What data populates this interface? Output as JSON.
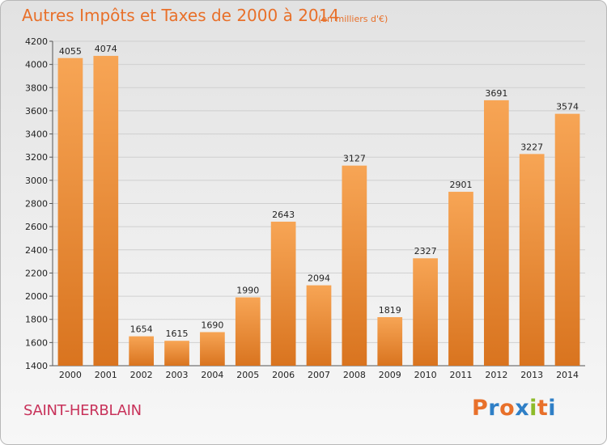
{
  "title": "Autres Impôts et Taxes de 2000 à 2014",
  "unit_note": "(en milliers d'€)",
  "commune": "SAINT-HERBLAIN",
  "logo_text": "Proxiti",
  "colors": {
    "title": "#e8702a",
    "commune": "#c8325a",
    "bar_light": "#f7a555",
    "bar_dark": "#d9741f",
    "logo": [
      "#e8702a",
      "#2f7fc6",
      "#e8702a",
      "#2f7fc6",
      "#8dbb2a",
      "#e8702a",
      "#2f7fc6"
    ]
  },
  "chart_data": {
    "type": "bar",
    "title": "Autres Impôts et Taxes de 2000 à 2014",
    "xlabel": "",
    "ylabel": "",
    "categories": [
      "2000",
      "2001",
      "2002",
      "2003",
      "2004",
      "2005",
      "2006",
      "2007",
      "2008",
      "2009",
      "2010",
      "2011",
      "2012",
      "2013",
      "2014"
    ],
    "values": [
      4055,
      4074,
      1654,
      1615,
      1690,
      1990,
      2643,
      2094,
      3127,
      1819,
      2327,
      2901,
      3691,
      3227,
      3574
    ],
    "ylim": [
      1400,
      4200
    ],
    "yticks": [
      1400,
      1600,
      1800,
      2000,
      2200,
      2400,
      2600,
      2800,
      3000,
      3200,
      3400,
      3600,
      3800,
      4000,
      4200
    ],
    "grid": true,
    "legend": "none"
  }
}
